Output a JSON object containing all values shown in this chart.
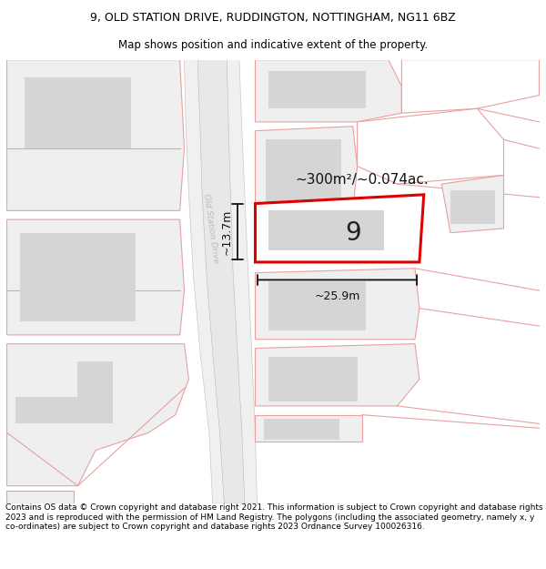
{
  "title_line1": "9, OLD STATION DRIVE, RUDDINGTON, NOTTINGHAM, NG11 6BZ",
  "title_line2": "Map shows position and indicative extent of the property.",
  "footer_text": "Contains OS data © Crown copyright and database right 2021. This information is subject to Crown copyright and database rights 2023 and is reproduced with the permission of HM Land Registry. The polygons (including the associated geometry, namely x, y co-ordinates) are subject to Crown copyright and database rights 2023 Ordnance Survey 100026316.",
  "area_label": "~300m²/~0.074ac.",
  "width_label": "~25.9m",
  "height_label": "~13.7m",
  "property_number": "9",
  "road_label": "Old Station Drive",
  "map_bg": "#ffffff",
  "parcel_fill": "#efefef",
  "building_fill": "#d5d5d5",
  "road_fill": "#e2e2e2",
  "road_outline": "#b0b0b0",
  "parcel_edge": "#e8a0a0",
  "property_edge": "#dd0000",
  "dim_color": "#111111",
  "road_text_color": "#aaaaaa",
  "title_fs": 9,
  "footer_fs": 6.5
}
